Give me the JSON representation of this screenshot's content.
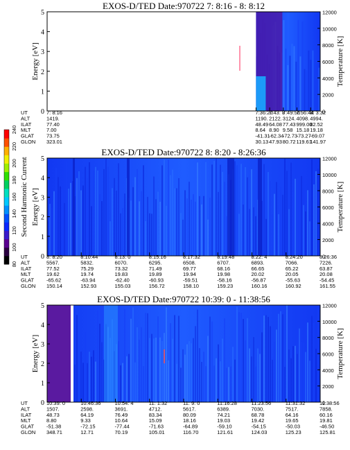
{
  "chart_data": {
    "type": "heatmap",
    "colorbar": {
      "label": "Second Harmonic Current",
      "ticks": [
        "80",
        "100",
        "120",
        "140",
        "160",
        "180",
        "200",
        "220",
        "240"
      ],
      "colors": [
        "#000000",
        "#2a0040",
        "#5a0090",
        "#3a1acc",
        "#0a28ff",
        "#0050ff",
        "#0090ff",
        "#00c8ff",
        "#00e0c0",
        "#00d060",
        "#30e000",
        "#a0f000",
        "#f0f000",
        "#ffb000",
        "#ff5000",
        "#ff0000"
      ]
    },
    "panels": [
      {
        "title": "EXOS-D/TED   Date:970722  7: 8:16 - 8: 8:12",
        "ylabel": "Energy [eV]",
        "y2label": "Temperature [K]",
        "ylim": [
          0,
          5
        ],
        "yticks": [
          "0",
          "1",
          "2",
          "3",
          "4",
          "5"
        ],
        "y2lim": [
          0,
          12000
        ],
        "y2ticks": [
          "0",
          "2000",
          "4000",
          "6000",
          "8000",
          "10000",
          "12000"
        ],
        "data_start_fraction": 0.765,
        "rows": [
          {
            "name": "UT",
            "values": [
              "7: 8:16",
              "7:36:20",
              "7:43: 8",
              "7:49:56",
              "7:56:44",
              "8: 3:32"
            ]
          },
          {
            "name": "ALT",
            "values": [
              "1419.",
              "1190.",
              "2122.",
              "3124.",
              "4098.",
              "4994."
            ]
          },
          {
            "name": "ILAT",
            "values": [
              "77.40",
              "48.49",
              "64.08",
              "77.43",
              "999.00",
              "82.52"
            ]
          },
          {
            "name": "MLT",
            "values": [
              "7.00",
              "8.64",
              "8.90",
              "9.58",
              "15.18",
              "19.18"
            ]
          },
          {
            "name": "GLAT",
            "values": [
              "73.75",
              "-41.31",
              "-62.34",
              "-72.73",
              "-73.27",
              "-69.07"
            ]
          },
          {
            "name": "GLON",
            "values": [
              "323.01",
              "30.13",
              "47.93",
              "80.72",
              "119.61",
              "141.97"
            ]
          }
        ]
      },
      {
        "title": "EXOS-D/TED   Date:970722  8: 8:20 - 8:26:36",
        "ylabel": "Energy [eV]",
        "y2label": "Temperature [K]",
        "ylim": [
          0,
          5
        ],
        "yticks": [
          "0",
          "1",
          "2",
          "3",
          "4",
          "5"
        ],
        "y2lim": [
          0,
          12000
        ],
        "y2ticks": [
          "0",
          "2000",
          "4000",
          "6000",
          "8000",
          "10000",
          "12000"
        ],
        "data_start_fraction": 0,
        "rows": [
          {
            "name": "UT",
            "values": [
              "8: 8:20",
              "8:10:44",
              "8:13: 0",
              "8:15:16",
              "8:17:32",
              "8:19:48",
              "8:22: 4",
              "8:24:20",
              "8:26:36"
            ]
          },
          {
            "name": "ALT",
            "values": [
              "5567.",
              "5832.",
              "6070.",
              "6295.",
              "6508.",
              "6707.",
              "6893.",
              "7066.",
              "7226."
            ]
          },
          {
            "name": "ILAT",
            "values": [
              "77.52",
              "75.29",
              "73.32",
              "71.49",
              "69.77",
              "68.16",
              "66.65",
              "65.22",
              "63.87"
            ]
          },
          {
            "name": "MLT",
            "values": [
              "19.62",
              "19.74",
              "19.83",
              "19.89",
              "19.94",
              "19.98",
              "20.02",
              "20.05",
              "20.08"
            ]
          },
          {
            "name": "GLAT",
            "values": [
              "-65.62",
              "-63.94",
              "-62.40",
              "-60.93",
              "-59.51",
              "-58.16",
              "-56.87",
              "-55.63",
              "-54.45"
            ]
          },
          {
            "name": "GLON",
            "values": [
              "150.14",
              "152.93",
              "155.03",
              "156.72",
              "158.10",
              "159.23",
              "160.16",
              "160.92",
              "161.55"
            ]
          }
        ]
      },
      {
        "title": "EXOS-D/TED   Date:970722  10:39: 0 - 11:38:56",
        "ylabel": "Energy [eV]",
        "y2label": "Temperature [K]",
        "ylim": [
          0,
          5
        ],
        "yticks": [
          "0",
          "1",
          "2",
          "3",
          "4",
          "5"
        ],
        "y2lim": [
          0,
          12000
        ],
        "y2ticks": [
          "0",
          "2000",
          "4000",
          "6000",
          "8000",
          "10000",
          "12000"
        ],
        "data_start_fraction": 0,
        "rows": [
          {
            "name": "UT",
            "values": [
              "10:39: 0",
              "10:46:36",
              "10:54: 4",
              "11: 1:32",
              "11: 9: 0",
              "11:16:28",
              "11:23:56",
              "11:31:32",
              "11:38:56"
            ]
          },
          {
            "name": "ALT",
            "values": [
              "1507.",
              "2598.",
              "3691.",
              "4712.",
              "5617.",
              "6389.",
              "7030.",
              "7517.",
              "7858."
            ]
          },
          {
            "name": "ILAT",
            "values": [
              "48.73",
              "64.19",
              "76.49",
              "83.34",
              "80.09",
              "74.21",
              "68.78",
              "64.16",
              "60.16"
            ]
          },
          {
            "name": "MLT",
            "values": [
              "8.80",
              "9.33",
              "10.64",
              "15.09",
              "18.16",
              "19.03",
              "19.42",
              "19.65",
              "19.81"
            ]
          },
          {
            "name": "GLAT",
            "values": [
              "-51.38",
              "-72.15",
              "-77.44",
              "-71.63",
              "-64.89",
              "-59.10",
              "-54.15",
              "-50.03",
              "-46.50"
            ]
          },
          {
            "name": "GLON",
            "values": [
              "348.71",
              "12.71",
              "70.19",
              "105.01",
              "116.70",
              "121.61",
              "124.03",
              "125.23",
              "125.81"
            ]
          }
        ]
      }
    ]
  }
}
